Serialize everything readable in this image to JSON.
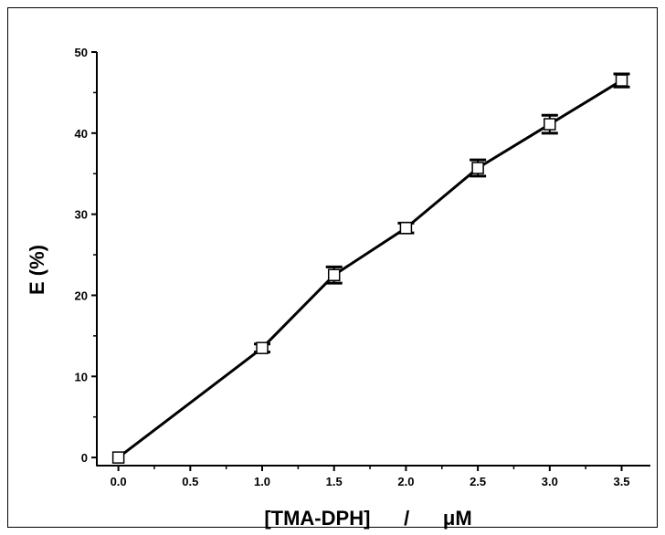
{
  "chart_data": {
    "type": "line",
    "title": "",
    "xlabel": "[TMA-DPH]      /      μM",
    "ylabel": "E (%)",
    "xlim": [
      -0.15,
      3.7
    ],
    "ylim": [
      -1,
      50
    ],
    "xticks": [
      0.0,
      0.5,
      1.0,
      1.5,
      2.0,
      2.5,
      3.0,
      3.5
    ],
    "xtick_labels": [
      "0.0",
      "0.5",
      "1.0",
      "1.5",
      "2.0",
      "2.5",
      "3.0",
      "3.5"
    ],
    "yticks": [
      0,
      10,
      20,
      30,
      40,
      50
    ],
    "ytick_labels": [
      "0",
      "10",
      "20",
      "30",
      "40",
      "50"
    ],
    "grid": false,
    "series": [
      {
        "marker": "open-square",
        "color": "#000000",
        "x": [
          0.0,
          1.0,
          1.5,
          2.0,
          2.5,
          3.0,
          3.5
        ],
        "y": [
          0.0,
          13.5,
          22.5,
          28.3,
          35.7,
          41.1,
          46.5
        ],
        "yerr": [
          0.0,
          0.5,
          1.0,
          0.6,
          1.0,
          1.1,
          0.8
        ]
      }
    ]
  }
}
